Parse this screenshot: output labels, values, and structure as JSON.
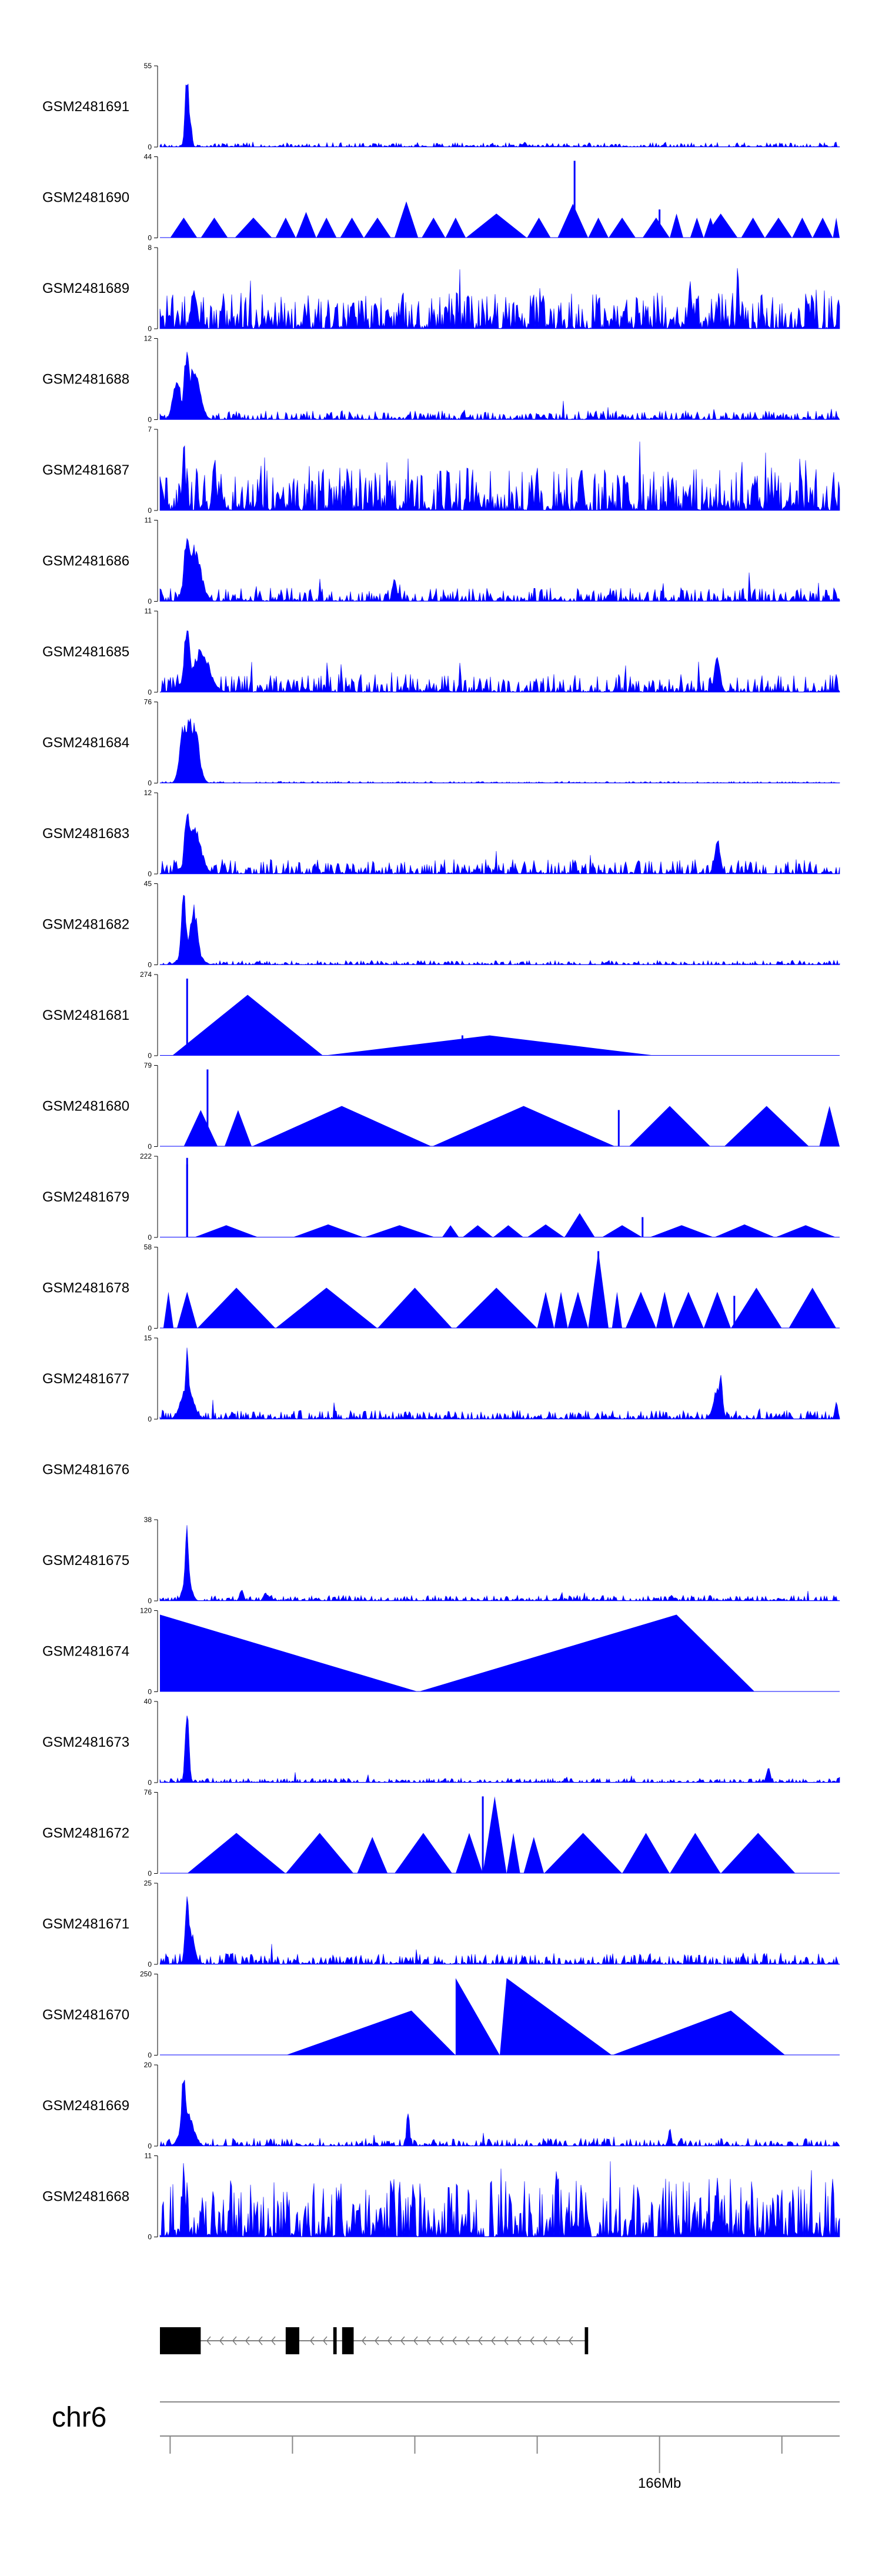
{
  "chart_data": {
    "type": "area",
    "title": "",
    "chromosome": "chr6",
    "color": "#0000ff",
    "tracks": [
      {
        "name": "GSM2481691",
        "ymax": 55,
        "ymin": 0,
        "style": "signal",
        "base": 0.04,
        "peaks": [
          [
            0.04,
            1.0,
            0.004
          ],
          [
            0.045,
            0.4,
            0.003
          ]
        ]
      },
      {
        "name": "GSM2481690",
        "ymax": 44,
        "ymin": 0,
        "style": "tri",
        "tri": [
          [
            0.015,
            0.055,
            0.25
          ],
          [
            0.06,
            0.1,
            0.25
          ],
          [
            0.11,
            0.165,
            0.25
          ],
          [
            0.17,
            0.2,
            0.25
          ],
          [
            0.2,
            0.23,
            0.32
          ],
          [
            0.23,
            0.26,
            0.25
          ],
          [
            0.265,
            0.3,
            0.25
          ],
          [
            0.3,
            0.34,
            0.25
          ],
          [
            0.345,
            0.38,
            0.45
          ],
          [
            0.385,
            0.42,
            0.25
          ],
          [
            0.42,
            0.45,
            0.25
          ],
          [
            0.45,
            0.54,
            0.3
          ],
          [
            0.54,
            0.575,
            0.25
          ],
          [
            0.585,
            0.63,
            0.42
          ],
          [
            0.63,
            0.66,
            0.25
          ],
          [
            0.66,
            0.7,
            0.25
          ],
          [
            0.71,
            0.75,
            0.25
          ],
          [
            0.75,
            0.77,
            0.3
          ],
          [
            0.78,
            0.8,
            0.25
          ],
          [
            0.8,
            0.82,
            0.25
          ],
          [
            0.8,
            0.85,
            0.3
          ],
          [
            0.855,
            0.89,
            0.25
          ],
          [
            0.89,
            0.93,
            0.25
          ],
          [
            0.93,
            0.96,
            0.25
          ],
          [
            0.96,
            0.99,
            0.25
          ],
          [
            0.99,
            1.0,
            0.25
          ]
        ],
        "spikes": [
          [
            0.61,
            0.95
          ],
          [
            0.735,
            0.35
          ]
        ]
      },
      {
        "name": "GSM2481689",
        "ymax": 8,
        "ymin": 0,
        "style": "noisy",
        "base": 0.28,
        "peaks": [
          [
            0.85,
            1.0,
            0.002
          ],
          [
            0.78,
            0.62,
            0.004
          ],
          [
            0.05,
            0.58,
            0.006
          ]
        ]
      },
      {
        "name": "GSM2481688",
        "ymax": 12,
        "ymin": 0,
        "style": "signal",
        "base": 0.08,
        "peaks": [
          [
            0.04,
            0.98,
            0.006
          ],
          [
            0.05,
            0.7,
            0.012
          ],
          [
            0.025,
            0.55,
            0.008
          ]
        ]
      },
      {
        "name": "GSM2481687",
        "ymax": 7,
        "ymin": 0,
        "style": "noisy",
        "base": 0.33,
        "peaks": [
          [
            0.035,
            1.0,
            0.003
          ],
          [
            0.08,
            0.7,
            0.004
          ],
          [
            0.62,
            0.65,
            0.004
          ]
        ]
      },
      {
        "name": "GSM2481686",
        "ymax": 11,
        "ymin": 0,
        "style": "signal",
        "base": 0.12,
        "peaks": [
          [
            0.04,
            0.95,
            0.006
          ],
          [
            0.05,
            0.7,
            0.014
          ],
          [
            0.345,
            0.35,
            0.004
          ]
        ]
      },
      {
        "name": "GSM2481685",
        "ymax": 11,
        "ymin": 0,
        "style": "signal",
        "base": 0.16,
        "peaks": [
          [
            0.04,
            0.95,
            0.006
          ],
          [
            0.06,
            0.55,
            0.018
          ],
          [
            0.82,
            0.45,
            0.006
          ]
        ]
      },
      {
        "name": "GSM2481684",
        "ymax": 76,
        "ymin": 0,
        "style": "signal",
        "base": 0.015,
        "peaks": [
          [
            0.043,
            0.95,
            0.008
          ],
          [
            0.035,
            0.75,
            0.008
          ],
          [
            0.05,
            0.8,
            0.01
          ]
        ]
      },
      {
        "name": "GSM2481683",
        "ymax": 12,
        "ymin": 0,
        "style": "signal",
        "base": 0.13,
        "peaks": [
          [
            0.04,
            0.95,
            0.005
          ],
          [
            0.05,
            0.65,
            0.014
          ],
          [
            0.82,
            0.45,
            0.006
          ]
        ]
      },
      {
        "name": "GSM2481682",
        "ymax": 45,
        "ymin": 0,
        "style": "signal",
        "base": 0.04,
        "peaks": [
          [
            0.035,
            1.0,
            0.005
          ],
          [
            0.05,
            0.75,
            0.008
          ],
          [
            0.045,
            0.4,
            0.015
          ]
        ]
      },
      {
        "name": "GSM2481681",
        "ymax": 274,
        "ymin": 0,
        "style": "tri",
        "tri": [
          [
            0.018,
            0.24,
            0.75
          ],
          [
            0.24,
            0.73,
            0.25
          ]
        ],
        "spikes": [
          [
            0.04,
            0.95
          ],
          [
            0.445,
            0.25
          ]
        ]
      },
      {
        "name": "GSM2481680",
        "ymax": 79,
        "ymin": 0,
        "style": "tri",
        "tri": [
          [
            0.035,
            0.085,
            0.45
          ],
          [
            0.095,
            0.135,
            0.45
          ],
          [
            0.135,
            0.4,
            0.5
          ],
          [
            0.4,
            0.67,
            0.5
          ],
          [
            0.69,
            0.81,
            0.5
          ],
          [
            0.83,
            0.955,
            0.5
          ],
          [
            0.97,
            1.0,
            0.5
          ]
        ],
        "spikes": [
          [
            0.07,
            0.95
          ],
          [
            0.675,
            0.45
          ]
        ]
      },
      {
        "name": "GSM2481679",
        "ymax": 222,
        "ymin": 0,
        "style": "tri",
        "tri": [
          [
            0.05,
            0.145,
            0.15
          ],
          [
            0.195,
            0.3,
            0.16
          ],
          [
            0.3,
            0.405,
            0.15
          ],
          [
            0.415,
            0.44,
            0.15
          ],
          [
            0.445,
            0.49,
            0.15
          ],
          [
            0.49,
            0.535,
            0.15
          ],
          [
            0.54,
            0.595,
            0.16
          ],
          [
            0.595,
            0.64,
            0.3
          ],
          [
            0.65,
            0.71,
            0.15
          ],
          [
            0.72,
            0.815,
            0.15
          ],
          [
            0.815,
            0.905,
            0.16
          ],
          [
            0.905,
            0.995,
            0.15
          ]
        ],
        "spikes": [
          [
            0.04,
            0.98
          ],
          [
            0.04,
            0.9
          ],
          [
            0.71,
            0.25
          ]
        ]
      },
      {
        "name": "GSM2481678",
        "ymax": 58,
        "ymin": 0,
        "style": "tri",
        "tri": [
          [
            0.005,
            0.02,
            0.45
          ],
          [
            0.025,
            0.055,
            0.45
          ],
          [
            0.055,
            0.17,
            0.5
          ],
          [
            0.17,
            0.32,
            0.5
          ],
          [
            0.32,
            0.43,
            0.5
          ],
          [
            0.435,
            0.555,
            0.5
          ],
          [
            0.555,
            0.58,
            0.45
          ],
          [
            0.58,
            0.6,
            0.45
          ],
          [
            0.6,
            0.63,
            0.45
          ],
          [
            0.63,
            0.66,
            0.95
          ],
          [
            0.665,
            0.68,
            0.45
          ],
          [
            0.685,
            0.73,
            0.45
          ],
          [
            0.73,
            0.755,
            0.45
          ],
          [
            0.755,
            0.8,
            0.45
          ],
          [
            0.8,
            0.84,
            0.45
          ],
          [
            0.84,
            0.915,
            0.5
          ],
          [
            0.925,
            0.995,
            0.5
          ]
        ],
        "spikes": [
          [
            0.645,
            0.95
          ],
          [
            0.845,
            0.4
          ]
        ]
      },
      {
        "name": "GSM2481677",
        "ymax": 15,
        "ymin": 0,
        "style": "signal",
        "base": 0.08,
        "peaks": [
          [
            0.04,
            0.95,
            0.004
          ],
          [
            0.04,
            0.5,
            0.012
          ],
          [
            0.825,
            0.6,
            0.004
          ],
          [
            0.82,
            0.4,
            0.008
          ],
          [
            0.995,
            0.25,
            0.003
          ]
        ]
      },
      {
        "name": "GSM2481676",
        "ymax": null,
        "ymin": null,
        "style": "empty"
      },
      {
        "name": "GSM2481675",
        "ymax": 38,
        "ymin": 0,
        "style": "signal",
        "base": 0.05,
        "peaks": [
          [
            0.04,
            0.95,
            0.004
          ],
          [
            0.04,
            0.35,
            0.008
          ],
          [
            0.12,
            0.15,
            0.004
          ],
          [
            0.155,
            0.12,
            0.004
          ]
        ]
      },
      {
        "name": "GSM2481674",
        "ymax": 120,
        "ymin": 0,
        "style": "tri",
        "tri": [
          [
            0.0,
            0.38,
            0.95
          ],
          [
            0.38,
            0.875,
            0.95
          ]
        ],
        "peakFrac": [
          0.0,
          0.76
        ]
      },
      {
        "name": "GSM2481673",
        "ymax": 40,
        "ymin": 0,
        "style": "signal",
        "base": 0.04,
        "peaks": [
          [
            0.04,
            0.95,
            0.004
          ],
          [
            0.895,
            0.2,
            0.004
          ]
        ]
      },
      {
        "name": "GSM2481672",
        "ymax": 76,
        "ymin": 0,
        "style": "tri",
        "tri": [
          [
            0.04,
            0.185,
            0.5
          ],
          [
            0.185,
            0.285,
            0.5
          ],
          [
            0.29,
            0.335,
            0.45
          ],
          [
            0.345,
            0.43,
            0.5
          ],
          [
            0.435,
            0.475,
            0.5
          ],
          [
            0.475,
            0.51,
            0.95
          ],
          [
            0.51,
            0.53,
            0.5
          ],
          [
            0.535,
            0.565,
            0.45
          ],
          [
            0.565,
            0.68,
            0.5
          ],
          [
            0.68,
            0.75,
            0.5
          ],
          [
            0.75,
            0.825,
            0.5
          ],
          [
            0.825,
            0.935,
            0.5
          ]
        ],
        "spikes": [
          [
            0.475,
            0.95
          ]
        ]
      },
      {
        "name": "GSM2481671",
        "ymax": 25,
        "ymin": 0,
        "style": "signal",
        "base": 0.1,
        "peaks": [
          [
            0.04,
            0.95,
            0.004
          ],
          [
            0.045,
            0.45,
            0.008
          ]
        ]
      },
      {
        "name": "GSM2481670",
        "ymax": 250,
        "ymin": 0,
        "style": "tri",
        "tri": [
          [
            0.185,
            0.435,
            0.55
          ],
          [
            0.435,
            0.5,
            0.95
          ],
          [
            0.5,
            0.665,
            0.95
          ],
          [
            0.665,
            0.92,
            0.55
          ]
        ],
        "peakFrac": [
          0.37,
          0.39,
          0.51,
          0.84
        ]
      },
      {
        "name": "GSM2481669",
        "ymax": 20,
        "ymin": 0,
        "style": "signal",
        "base": 0.07,
        "peaks": [
          [
            0.035,
            0.95,
            0.005
          ],
          [
            0.04,
            0.5,
            0.012
          ],
          [
            0.365,
            0.5,
            0.003
          ],
          [
            0.75,
            0.25,
            0.003
          ]
        ]
      },
      {
        "name": "GSM2481668",
        "ymax": 11,
        "ymin": 0,
        "style": "noisy",
        "base": 0.45,
        "peaks": [
          [
            0.035,
            0.95,
            0.003
          ],
          [
            0.62,
            0.75,
            0.003
          ],
          [
            0.82,
            0.85,
            0.003
          ]
        ]
      }
    ],
    "gene_model": {
      "strand": "-",
      "exons": [
        [
          0.0,
          0.06
        ],
        [
          0.185,
          0.205
        ],
        [
          0.255,
          0.26
        ],
        [
          0.268,
          0.285
        ],
        [
          0.625,
          0.63
        ]
      ],
      "span": [
        0.0,
        0.63
      ]
    },
    "axis": {
      "tick_labels": [
        "",
        "",
        "",
        "",
        "166Mb",
        ""
      ],
      "tick_positions": [
        0.015,
        0.195,
        0.375,
        0.555,
        0.735,
        0.915
      ]
    }
  }
}
